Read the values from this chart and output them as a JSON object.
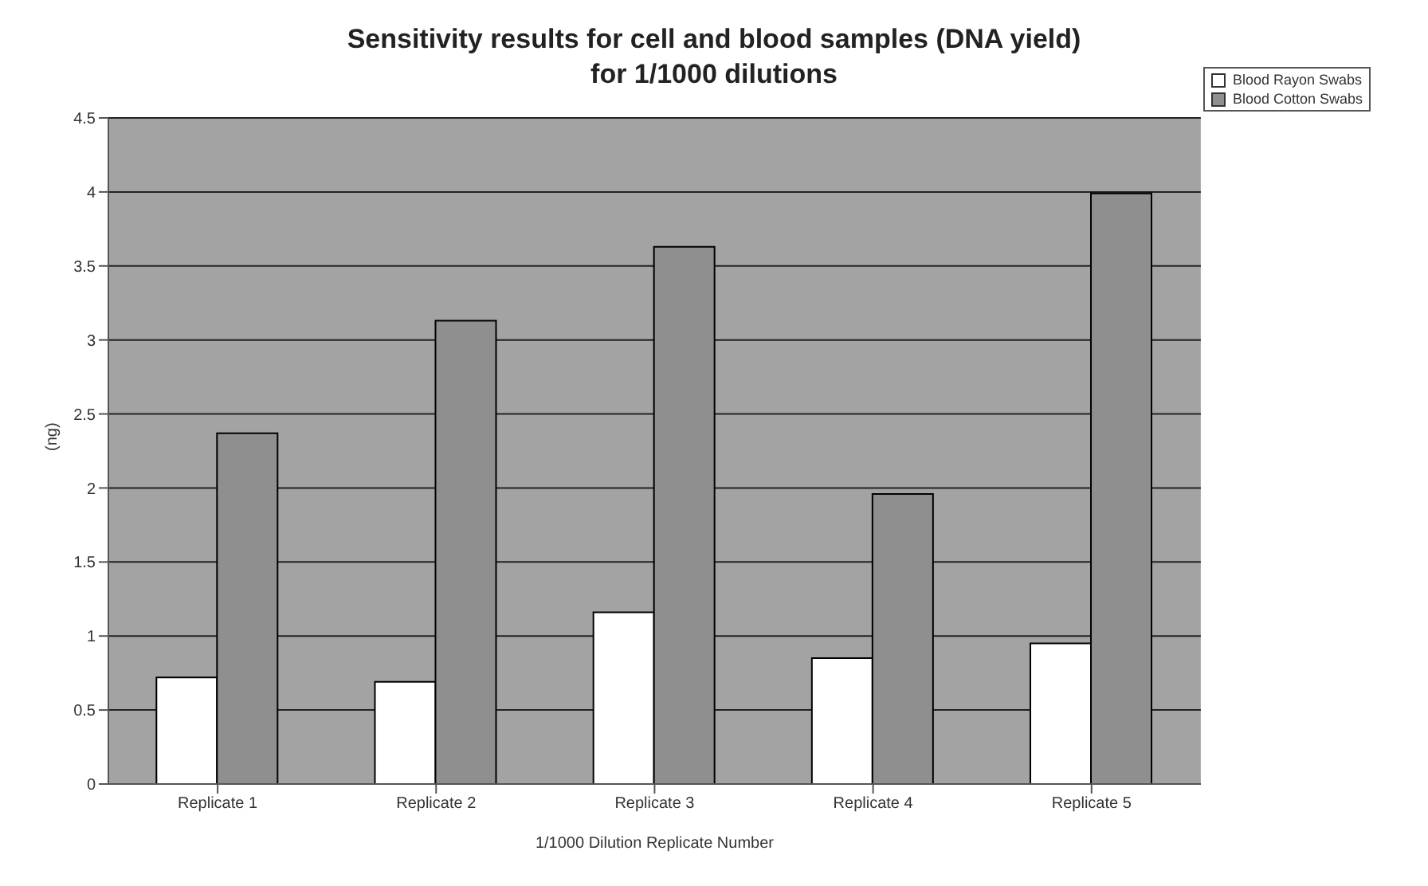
{
  "chart_data": {
    "type": "bar",
    "title": "Sensitivity results for cell and blood samples (DNA yield)\nfor 1/1000 dilutions",
    "xlabel": "1/1000 Dilution Replicate Number",
    "ylabel": "(ng)",
    "categories": [
      "Replicate 1",
      "Replicate 2",
      "Replicate 3",
      "Replicate 4",
      "Replicate 5"
    ],
    "series": [
      {
        "name": "Blood Rayon Swabs",
        "color": "#ffffff",
        "values": [
          0.72,
          0.69,
          1.16,
          0.85,
          0.95
        ]
      },
      {
        "name": "Blood Cotton Swabs",
        "color": "#8f8f8f",
        "values": [
          2.37,
          3.13,
          3.63,
          1.96,
          3.99
        ]
      }
    ],
    "ylim": [
      0,
      4.5
    ],
    "yticks": [
      0,
      0.5,
      1,
      1.5,
      2,
      2.5,
      3,
      3.5,
      4,
      4.5
    ],
    "grid": "y",
    "legend": "top right"
  }
}
